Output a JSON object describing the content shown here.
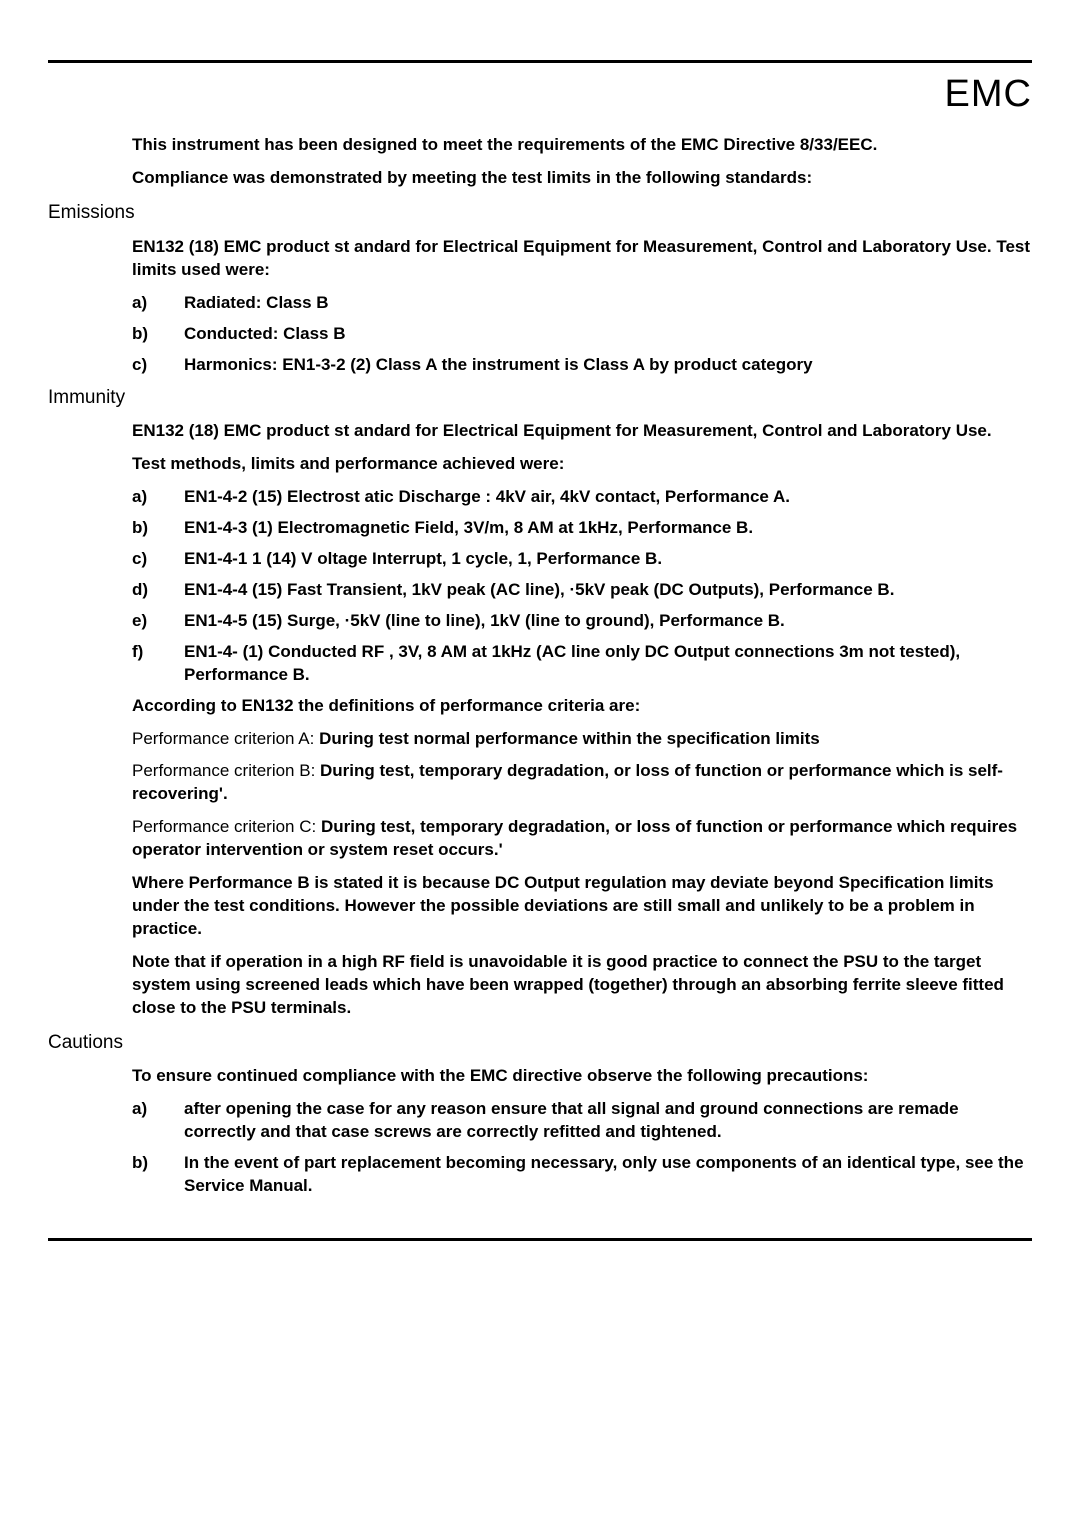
{
  "title": "EMC",
  "intro_p1": "This instrument has been designed to meet the requirements of the EMC Directive 8/33/EEC.",
  "intro_p2": "Compliance was demonstrated by meeting the test limits in the following standards:",
  "emissions": {
    "heading": "Emissions",
    "lead": "EN132 (18) EMC product st        andard for Electrical Equipment for Measurement, Control and Laboratory Use. Test limits used were:",
    "items": [
      {
        "label": "a)",
        "text": "Radiated:     Class B"
      },
      {
        "label": "b)",
        "text": "Conducted:  Class B"
      },
      {
        "label": "c)",
        "text": "Harmonics:  EN1-3-2 (2) Class            A the instrument is Class A by product category"
      }
    ]
  },
  "immunity": {
    "heading": "Immunity",
    "lead1": "EN132 (18) EMC product st        andard for Electrical Equipment for Measurement, Control and Laboratory Use.",
    "lead2": "Test methods, limits and performance achieved were:",
    "items": [
      {
        "label": "a)",
        "text": "EN1-4-2 (15) Electrost            atic Discharge : 4kV air, 4kV contact, Performance A."
      },
      {
        "label": "b)",
        "text": "EN1-4-3 (1) Electromagnetic Field, 3V/m, 8                   AM at 1kHz, Performance B."
      },
      {
        "label": "c)",
        "text": "EN1-4-1       1 (14) V    oltage Interrupt, 1 cycle, 1, Performance B."
      },
      {
        "label": "d)",
        "text": "EN1-4-4 (15) Fast              Transient, 1kV peak (AC line), ·5kV peak (DC Outputs), Performance B."
      },
      {
        "label": "e)",
        "text": "EN1-4-5 (15) Surge, ·5kV (line to line), 1kV (line to ground), Performance B."
      },
      {
        "label": "f)",
        "text": "EN1-4- (1) Conducted RF              , 3V, 8     AM at 1kHz (AC line only DC Output connections 3m not tested), Performance B."
      }
    ],
    "according": "According to EN132 the definitions of performance criteria are:",
    "criteria": [
      {
        "label": "Performance criterion    A:  ",
        "text": "During test normal performance within the specification limits"
      },
      {
        "label": "Performance criterion B:     ",
        "text": "During test, temporary degradation, or loss of function or performance which is self-recovering'."
      },
      {
        "label": "Performance criterion C:     ",
        "text": "During test, temporary degradation, or loss of function or performance which requires operator intervention or system reset occurs.'"
      }
    ],
    "where_b": "Where Performance B is stated it is because DC Output regulation may deviate beyond Specification limits under the test conditions.  However the possible deviations are still small and unlikely to be a problem in practice.",
    "note": "Note that if operation in a high RF field is unavoidable it is good practice to connect the PSU to the target system using screened leads which have been wrapped (together) through an absorbing ferrite sleeve fitted close to the PSU terminals."
  },
  "cautions": {
    "heading": "Cautions",
    "lead": "To ensure continued compliance with the EMC directive observe the following precautions:",
    "items": [
      {
        "label": "a)",
        "text": "after opening the case for any reason ensure that all signal and ground connections are remade correctly and that case screws are correctly refitted and tightened."
      },
      {
        "label": "b)",
        "text": "In the event of part replacement becoming necessary, only use components of an identical type, see the Service Manual."
      }
    ]
  }
}
